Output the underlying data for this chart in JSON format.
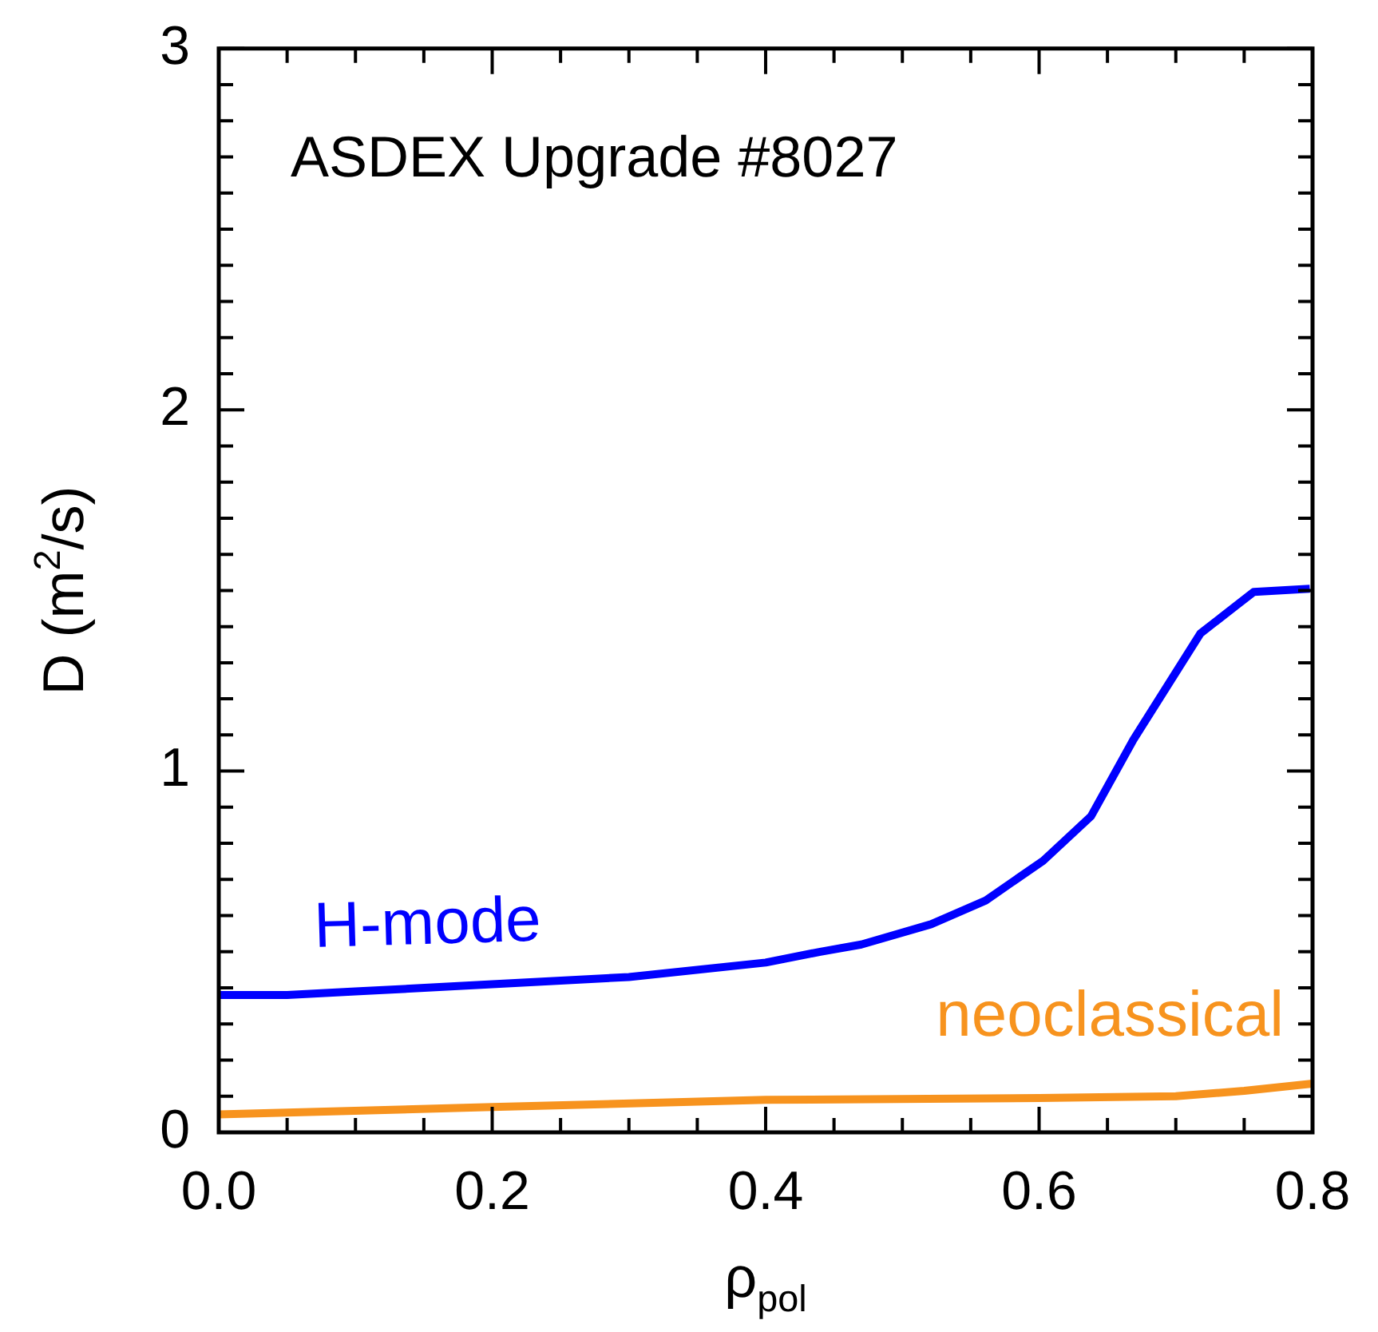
{
  "chart_data": {
    "type": "line",
    "xlabel": "ρ$_{pol}$",
    "ylabel": "D (m$^{2}$/s)",
    "annotations": [
      "ASDEX Upgrade #8027"
    ],
    "xlim": [
      0,
      0.8
    ],
    "ylim": [
      0,
      3
    ],
    "xticks": [
      {
        "value": 0,
        "label": "0.0"
      },
      {
        "value": 0.05,
        "label": null
      },
      {
        "value": 0.1,
        "label": null
      },
      {
        "value": 0.15,
        "label": null
      },
      {
        "value": 0.2,
        "label": "0.2"
      },
      {
        "value": 0.25,
        "label": null
      },
      {
        "value": 0.3,
        "label": null
      },
      {
        "value": 0.35,
        "label": null
      },
      {
        "value": 0.4,
        "label": "0.4"
      },
      {
        "value": 0.45,
        "label": null
      },
      {
        "value": 0.5,
        "label": null
      },
      {
        "value": 0.55,
        "label": null
      },
      {
        "value": 0.6,
        "label": "0.6"
      },
      {
        "value": 0.65,
        "label": null
      },
      {
        "value": 0.7,
        "label": null
      },
      {
        "value": 0.75,
        "label": null
      },
      {
        "value": 0.8,
        "label": "0.8"
      }
    ],
    "yticks": [
      0,
      {
        "value": 0.1,
        "label": null
      },
      {
        "value": 0.2,
        "label": null
      },
      {
        "value": 0.3,
        "label": null
      },
      {
        "value": 0.4,
        "label": null
      },
      {
        "value": 0.5,
        "label": null
      },
      {
        "value": 0.6,
        "label": null
      },
      {
        "value": 0.7,
        "label": null
      },
      {
        "value": 0.8,
        "label": null
      },
      {
        "value": 0.9,
        "label": null
      },
      1,
      {
        "value": 1.1,
        "label": null
      },
      {
        "value": 1.2,
        "label": null
      },
      {
        "value": 1.3,
        "label": null
      },
      {
        "value": 1.4,
        "label": null
      },
      {
        "value": 1.5,
        "label": null
      },
      {
        "value": 1.6,
        "label": null
      },
      {
        "value": 1.7,
        "label": null
      },
      {
        "value": 1.8,
        "label": null
      },
      {
        "value": 1.9,
        "label": null
      },
      2,
      {
        "value": 2.1,
        "label": null
      },
      {
        "value": 2.2,
        "label": null
      },
      {
        "value": 2.3,
        "label": null
      },
      {
        "value": 2.4,
        "label": null
      },
      {
        "value": 2.5,
        "label": null
      },
      {
        "value": 2.6,
        "label": null
      },
      {
        "value": 2.7,
        "label": null
      },
      {
        "value": 2.8,
        "label": null
      },
      {
        "value": 2.9,
        "label": null
      },
      3
    ],
    "series": [
      {
        "name": "H-mode",
        "color": "#0000ff",
        "x": [
          0,
          0.05,
          0.1,
          0.2,
          0.3,
          0.4,
          0.44,
          0.47,
          0.521,
          0.561,
          0.603,
          0.638,
          0.669,
          0.718,
          0.757,
          0.798
        ],
        "values": [
          0.38,
          0.38,
          0.39,
          0.41,
          0.43,
          0.47,
          0.5,
          0.52,
          0.576,
          0.642,
          0.752,
          0.875,
          1.087,
          1.381,
          1.496,
          1.505
        ]
      },
      {
        "name": "neoclassical",
        "color": "#f7931e",
        "x": [
          0,
          0.2,
          0.4,
          0.6,
          0.7,
          0.75,
          0.8
        ],
        "values": [
          0.05,
          0.07,
          0.09,
          0.095,
          0.1,
          0.115,
          0.135
        ]
      }
    ]
  }
}
